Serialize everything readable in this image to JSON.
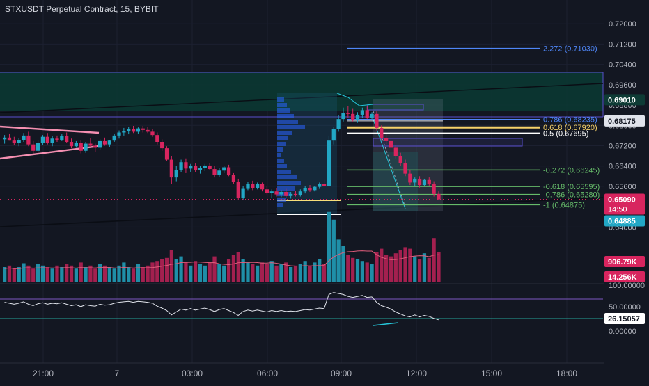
{
  "header": {
    "title": "STXUSDT Perpetual Contract, 15, BYBIT"
  },
  "colors": {
    "background": "#131722",
    "up": "#22a7c5",
    "down": "#d8255f",
    "grid": "#1c2030",
    "text": "#d1d4dc",
    "fib_blue": "#2962ff",
    "fib_green": "#4caf50",
    "fib_gold": "#f7d26a",
    "fib_white": "#ffffff",
    "channel": "#5a4fcf",
    "zone": "#0b3a33",
    "rsi_line": "#e0e3eb",
    "triangle": "#f48fb1"
  },
  "chart_data": {
    "type": "candlestick",
    "x_tick_labels": [
      "21:00",
      "7",
      "03:00",
      "06:00",
      "09:00",
      "12:00",
      "15:00",
      "18:00"
    ],
    "y_tick_labels": [
      "0.72000",
      "0.71200",
      "0.70400",
      "0.69600",
      "0.68800",
      "0.68000",
      "0.67200",
      "0.66400",
      "0.65600",
      "0.64000"
    ],
    "ylim": [
      0.6368,
      0.7228
    ],
    "price_labels": {
      "zone_top": "0.69010",
      "last_close_ref": "0.68175",
      "current_price": "0.65090",
      "countdown": "14:50",
      "lower_ref": "0.64885"
    },
    "fib_levels": [
      {
        "label": "2.272 (0.71030)",
        "value": 0.7103,
        "kind": "blue"
      },
      {
        "label": "0.786 (0.68235)",
        "value": 0.68235,
        "kind": "blue"
      },
      {
        "label": "0.618 (0.67920)",
        "value": 0.6792,
        "kind": "gold"
      },
      {
        "label": "0.5 (0.67695)",
        "value": 0.67695,
        "kind": "white"
      },
      {
        "label": "-0.272 (0.66245)",
        "value": 0.66245,
        "kind": "green"
      },
      {
        "label": "-0.618 (0.65595)",
        "value": 0.65595,
        "kind": "green"
      },
      {
        "label": "-0.786 (0.65280)",
        "value": 0.6528,
        "kind": "green"
      },
      {
        "label": "-1 (0.64875)",
        "value": 0.64875,
        "kind": "green"
      }
    ],
    "candles": [
      [
        0.6745,
        0.6762,
        0.6728,
        0.6752
      ],
      [
        0.6752,
        0.6768,
        0.674,
        0.674
      ],
      [
        0.674,
        0.6755,
        0.6722,
        0.673
      ],
      [
        0.673,
        0.6749,
        0.6718,
        0.6742
      ],
      [
        0.6742,
        0.677,
        0.6735,
        0.676
      ],
      [
        0.676,
        0.6775,
        0.6718,
        0.6725
      ],
      [
        0.6725,
        0.6738,
        0.669,
        0.67
      ],
      [
        0.67,
        0.674,
        0.6695,
        0.6732
      ],
      [
        0.6732,
        0.6762,
        0.6722,
        0.6755
      ],
      [
        0.6755,
        0.677,
        0.6725,
        0.673
      ],
      [
        0.673,
        0.6758,
        0.6718,
        0.6748
      ],
      [
        0.6748,
        0.676,
        0.6735,
        0.6742
      ],
      [
        0.6742,
        0.6765,
        0.6738,
        0.6758
      ],
      [
        0.6758,
        0.6772,
        0.673,
        0.6735
      ],
      [
        0.6735,
        0.6748,
        0.671,
        0.6718
      ],
      [
        0.6718,
        0.6738,
        0.6712,
        0.673
      ],
      [
        0.673,
        0.674,
        0.669,
        0.67
      ],
      [
        0.67,
        0.6735,
        0.6692,
        0.6728
      ],
      [
        0.6728,
        0.675,
        0.6715,
        0.672
      ],
      [
        0.672,
        0.6728,
        0.6695,
        0.6712
      ],
      [
        0.6712,
        0.6745,
        0.6705,
        0.6738
      ],
      [
        0.6738,
        0.6752,
        0.672,
        0.6725
      ],
      [
        0.6725,
        0.6742,
        0.6715,
        0.674
      ],
      [
        0.674,
        0.6768,
        0.6735,
        0.676
      ],
      [
        0.676,
        0.678,
        0.6748,
        0.6772
      ],
      [
        0.6772,
        0.679,
        0.676,
        0.6778
      ],
      [
        0.6778,
        0.6795,
        0.6765,
        0.6785
      ],
      [
        0.6785,
        0.6798,
        0.677,
        0.6775
      ],
      [
        0.6775,
        0.6792,
        0.6768,
        0.6788
      ],
      [
        0.6788,
        0.6798,
        0.6772,
        0.6782
      ],
      [
        0.6782,
        0.6794,
        0.677,
        0.6775
      ],
      [
        0.6775,
        0.6785,
        0.6755,
        0.6762
      ],
      [
        0.6762,
        0.6772,
        0.6725,
        0.6735
      ],
      [
        0.6735,
        0.6745,
        0.67,
        0.671
      ],
      [
        0.671,
        0.6718,
        0.666,
        0.6665
      ],
      [
        0.6665,
        0.668,
        0.657,
        0.6595
      ],
      [
        0.6595,
        0.664,
        0.658,
        0.6625
      ],
      [
        0.6625,
        0.6665,
        0.6615,
        0.6655
      ],
      [
        0.6655,
        0.667,
        0.6612,
        0.663
      ],
      [
        0.663,
        0.6648,
        0.6615,
        0.6642
      ],
      [
        0.6642,
        0.665,
        0.6615,
        0.6625
      ],
      [
        0.6625,
        0.664,
        0.661,
        0.6632
      ],
      [
        0.6632,
        0.6648,
        0.662,
        0.6642
      ],
      [
        0.6642,
        0.665,
        0.6625,
        0.6628
      ],
      [
        0.6628,
        0.664,
        0.6595,
        0.6605
      ],
      [
        0.6605,
        0.6632,
        0.6598,
        0.6622
      ],
      [
        0.6622,
        0.664,
        0.6612,
        0.6635
      ],
      [
        0.6635,
        0.6645,
        0.66,
        0.6605
      ],
      [
        0.6605,
        0.6612,
        0.657,
        0.6578
      ],
      [
        0.6578,
        0.659,
        0.6505,
        0.6515
      ],
      [
        0.6515,
        0.656,
        0.6508,
        0.655
      ],
      [
        0.655,
        0.6578,
        0.6545,
        0.657
      ],
      [
        0.657,
        0.6582,
        0.6545,
        0.6552
      ],
      [
        0.6552,
        0.6575,
        0.6548,
        0.6568
      ],
      [
        0.6568,
        0.6575,
        0.654,
        0.6548
      ],
      [
        0.6548,
        0.656,
        0.6528,
        0.6535
      ],
      [
        0.6535,
        0.6548,
        0.6515,
        0.654
      ],
      [
        0.654,
        0.6552,
        0.652,
        0.6528
      ],
      [
        0.6528,
        0.6545,
        0.6518,
        0.6538
      ],
      [
        0.6538,
        0.655,
        0.6515,
        0.6522
      ],
      [
        0.6522,
        0.6538,
        0.6512,
        0.653
      ],
      [
        0.653,
        0.6542,
        0.652,
        0.6525
      ],
      [
        0.6525,
        0.6548,
        0.652,
        0.654
      ],
      [
        0.654,
        0.656,
        0.6532,
        0.6552
      ],
      [
        0.6552,
        0.6565,
        0.6538,
        0.6545
      ],
      [
        0.6545,
        0.6562,
        0.654,
        0.6558
      ],
      [
        0.6558,
        0.6575,
        0.655,
        0.657
      ],
      [
        0.657,
        0.6585,
        0.656,
        0.6562
      ],
      [
        0.6562,
        0.676,
        0.656,
        0.674
      ],
      [
        0.674,
        0.6795,
        0.6725,
        0.6785
      ],
      [
        0.6785,
        0.684,
        0.6775,
        0.6825
      ],
      [
        0.6825,
        0.687,
        0.6815,
        0.685
      ],
      [
        0.685,
        0.6875,
        0.683,
        0.6845
      ],
      [
        0.6845,
        0.6865,
        0.6815,
        0.682
      ],
      [
        0.682,
        0.6852,
        0.681,
        0.6842
      ],
      [
        0.6842,
        0.687,
        0.683,
        0.686
      ],
      [
        0.686,
        0.6875,
        0.6825,
        0.683
      ],
      [
        0.683,
        0.6852,
        0.682,
        0.6845
      ],
      [
        0.6845,
        0.6855,
        0.678,
        0.679
      ],
      [
        0.679,
        0.68,
        0.674,
        0.675
      ],
      [
        0.675,
        0.6765,
        0.6725,
        0.6738
      ],
      [
        0.6738,
        0.675,
        0.67,
        0.6712
      ],
      [
        0.6712,
        0.6722,
        0.667,
        0.668
      ],
      [
        0.668,
        0.6692,
        0.664,
        0.665
      ],
      [
        0.665,
        0.6665,
        0.66,
        0.661
      ],
      [
        0.661,
        0.6625,
        0.6565,
        0.6575
      ],
      [
        0.6575,
        0.6595,
        0.656,
        0.659
      ],
      [
        0.659,
        0.66,
        0.6555,
        0.6565
      ],
      [
        0.6565,
        0.659,
        0.656,
        0.6585
      ],
      [
        0.6585,
        0.6595,
        0.656,
        0.6568
      ],
      [
        0.6568,
        0.658,
        0.652,
        0.653
      ],
      [
        0.653,
        0.654,
        0.6505,
        0.6509
      ]
    ],
    "volume_label_high": "906.79K",
    "volume_label_low": "14.256K",
    "volumes": [
      0.2,
      0.22,
      0.18,
      0.2,
      0.25,
      0.22,
      0.18,
      0.24,
      0.22,
      0.2,
      0.18,
      0.22,
      0.2,
      0.24,
      0.22,
      0.18,
      0.26,
      0.2,
      0.22,
      0.18,
      0.24,
      0.22,
      0.2,
      0.18,
      0.22,
      0.26,
      0.2,
      0.18,
      0.24,
      0.2,
      0.22,
      0.26,
      0.28,
      0.3,
      0.32,
      0.42,
      0.3,
      0.34,
      0.26,
      0.22,
      0.28,
      0.24,
      0.22,
      0.26,
      0.34,
      0.24,
      0.22,
      0.3,
      0.36,
      0.4,
      0.3,
      0.26,
      0.24,
      0.22,
      0.26,
      0.24,
      0.28,
      0.22,
      0.24,
      0.26,
      0.2,
      0.22,
      0.24,
      0.28,
      0.22,
      0.26,
      0.3,
      0.24,
      0.92,
      0.82,
      0.56,
      0.48,
      0.36,
      0.32,
      0.3,
      0.28,
      0.26,
      0.24,
      0.4,
      0.44,
      0.36,
      0.34,
      0.38,
      0.42,
      0.46,
      0.44,
      0.34,
      0.3,
      0.38,
      0.32,
      0.58,
      0.4
    ],
    "rsi_labels": [
      "100.00000",
      "50.00000",
      "0.00000"
    ],
    "rsi_value_label": "26.15057",
    "rsi": [
      62,
      60,
      58,
      60,
      63,
      58,
      55,
      59,
      61,
      58,
      60,
      59,
      61,
      58,
      55,
      57,
      53,
      57,
      55,
      54,
      58,
      56,
      57,
      60,
      62,
      63,
      64,
      62,
      64,
      63,
      62,
      60,
      54,
      50,
      45,
      36,
      42,
      48,
      46,
      49,
      46,
      48,
      50,
      47,
      43,
      47,
      49,
      45,
      41,
      35,
      43,
      46,
      44,
      46,
      44,
      42,
      45,
      43,
      45,
      43,
      44,
      43,
      45,
      47,
      46,
      48,
      50,
      49,
      78,
      82,
      80,
      78,
      74,
      72,
      74,
      76,
      72,
      73,
      62,
      55,
      52,
      48,
      42,
      38,
      34,
      32,
      36,
      32,
      35,
      33,
      29,
      26
    ]
  }
}
